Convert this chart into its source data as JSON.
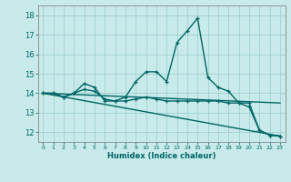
{
  "xlabel": "Humidex (Indice chaleur)",
  "ylabel": "",
  "bg_color": "#c8eaea",
  "grid_color": "#a0d0d0",
  "line_color": "#006666",
  "ylim": [
    11.5,
    18.5
  ],
  "xlim": [
    -0.5,
    23.5
  ],
  "yticks": [
    12,
    13,
    14,
    15,
    16,
    17,
    18
  ],
  "xticks": [
    0,
    1,
    2,
    3,
    4,
    5,
    6,
    7,
    8,
    9,
    10,
    11,
    12,
    13,
    14,
    15,
    16,
    17,
    18,
    19,
    20,
    21,
    22,
    23
  ],
  "line1_x": [
    0,
    1,
    2,
    3,
    4,
    5,
    6,
    7,
    8,
    9,
    10,
    11,
    12,
    13,
    14,
    15,
    16,
    17,
    18,
    19,
    20,
    21,
    22,
    23
  ],
  "line1_y": [
    14.0,
    14.0,
    13.8,
    14.0,
    14.5,
    14.3,
    13.6,
    13.6,
    13.8,
    14.6,
    15.1,
    15.1,
    14.6,
    16.6,
    17.2,
    17.85,
    14.8,
    14.3,
    14.1,
    13.5,
    13.3,
    12.1,
    11.85,
    11.8
  ],
  "line2_x": [
    0,
    1,
    2,
    3,
    4,
    5,
    6,
    7,
    8,
    9,
    10,
    11,
    12,
    13,
    14,
    15,
    16,
    17,
    18,
    19,
    20,
    21,
    22,
    23
  ],
  "line2_y": [
    14.0,
    14.0,
    13.8,
    14.0,
    14.2,
    14.1,
    13.7,
    13.6,
    13.6,
    13.7,
    13.8,
    13.7,
    13.6,
    13.6,
    13.6,
    13.6,
    13.6,
    13.6,
    13.5,
    13.5,
    13.5,
    12.1,
    11.85,
    11.8
  ],
  "line3_x": [
    0,
    23
  ],
  "line3_y": [
    14.0,
    11.8
  ],
  "line4_x": [
    0,
    23
  ],
  "line4_y": [
    14.0,
    13.5
  ],
  "marker_size": 3.5,
  "line_width": 1.0
}
